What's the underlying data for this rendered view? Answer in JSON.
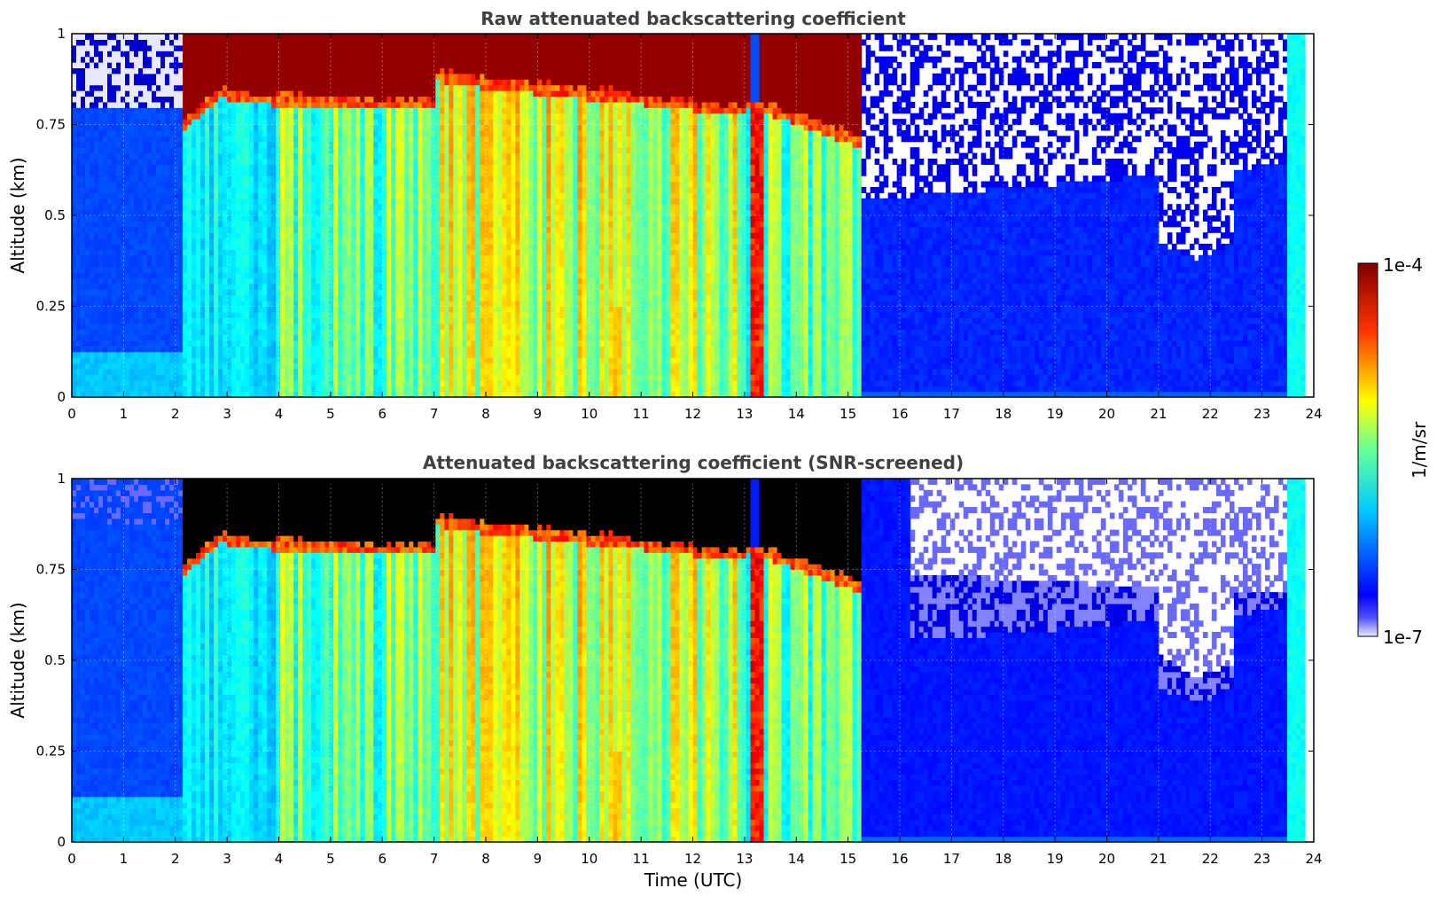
{
  "chart_data": [
    {
      "type": "heatmap",
      "title": "Raw attenuated backscattering coefficient",
      "xlabel": "",
      "ylabel": "Altitude (km)",
      "xlim": [
        0,
        24
      ],
      "ylim": [
        0,
        1
      ],
      "xticks": [
        "0",
        "1",
        "2",
        "3",
        "4",
        "5",
        "6",
        "7",
        "8",
        "9",
        "10",
        "11",
        "12",
        "13",
        "14",
        "15",
        "16",
        "17",
        "18",
        "19",
        "20",
        "21",
        "22",
        "23",
        "24"
      ],
      "yticks": [
        "0",
        "0.25",
        "0.5",
        "0.75",
        "1"
      ],
      "grid": true,
      "screened": false,
      "features": [
        {
          "name": "cloud layer",
          "x": [
            2.1,
            15.2
          ],
          "base_km": [
            0.76,
            0.88
          ],
          "top_km": 1.0,
          "level": "max"
        },
        {
          "name": "precipitation fall streaks",
          "x": [
            2.1,
            15.5
          ],
          "level": "mid-high"
        },
        {
          "name": "strong column",
          "x": [
            13.1,
            13.4
          ],
          "level": "high"
        },
        {
          "name": "surface layer",
          "x": [
            0,
            24
          ],
          "top_km": 0.1,
          "level": "low-mid"
        },
        {
          "name": "noise region",
          "x": [
            15.5,
            23.3
          ],
          "level": "low"
        }
      ]
    },
    {
      "type": "heatmap",
      "title": "Attenuated backscattering coefficient (SNR-screened)",
      "xlabel": "Time (UTC)",
      "ylabel": "Altitude (km)",
      "xlim": [
        0,
        24
      ],
      "ylim": [
        0,
        1
      ],
      "xticks": [
        "0",
        "1",
        "2",
        "3",
        "4",
        "5",
        "6",
        "7",
        "8",
        "9",
        "10",
        "11",
        "12",
        "13",
        "14",
        "15",
        "16",
        "17",
        "18",
        "19",
        "20",
        "21",
        "22",
        "23",
        "24"
      ],
      "yticks": [
        "0",
        "0.25",
        "0.5",
        "0.75",
        "1"
      ],
      "grid": true,
      "screened": true,
      "features": [
        {
          "name": "saturated cloud layer",
          "x": [
            2.1,
            15.2
          ],
          "base_km": [
            0.76,
            0.88
          ],
          "top_km": 1.0,
          "level": "saturated"
        },
        {
          "name": "precipitation fall streaks",
          "x": [
            2.1,
            15.5
          ],
          "level": "mid-high"
        },
        {
          "name": "screened-out region",
          "x": [
            16.5,
            23.3
          ],
          "level": "no-data"
        }
      ]
    }
  ],
  "colorbar": {
    "label": "1/m/sr",
    "max_label": "1e-4",
    "min_label": "1e-7",
    "colormap": "jet",
    "saturated_color": "#000000"
  }
}
